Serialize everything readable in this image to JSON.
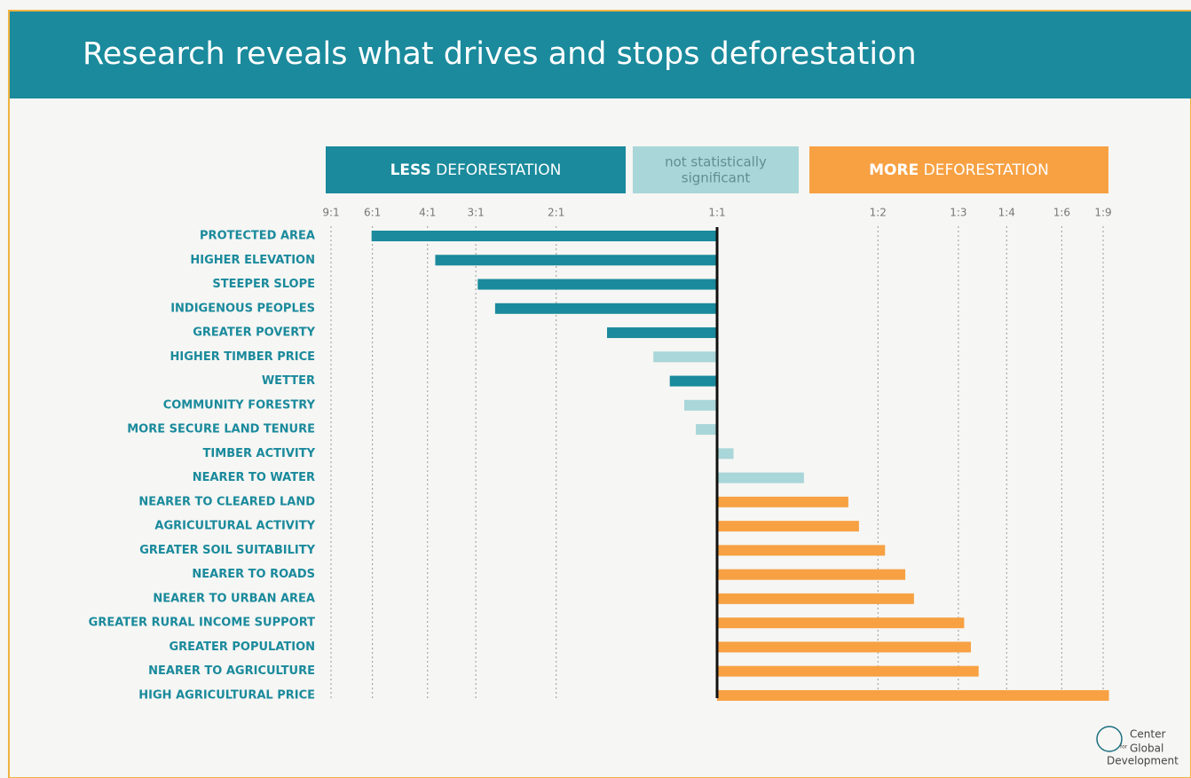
{
  "chart_data": {
    "type": "bar",
    "orientation": "horizontal",
    "title": "Research reveals what drives and stops deforestation",
    "legend": [
      {
        "bold": "LESS",
        "text": "DEFORESTATION",
        "color": "#1a8a9c",
        "text_color": "#ffffff"
      },
      {
        "lines": [
          "not statistically",
          "significant"
        ],
        "color": "#a9d6d8",
        "text_color": "#5f8f93"
      },
      {
        "bold": "MORE",
        "text": "DEFORESTATION",
        "color": "#f7a143",
        "text_color": "#ffffff"
      }
    ],
    "categories": [
      "PROTECTED AREA",
      "HIGHER ELEVATION",
      "STEEPER SLOPE",
      "INDIGENOUS PEOPLES",
      "GREATER POVERTY",
      "HIGHER TIMBER PRICE",
      "WETTER",
      "COMMUNITY FORESTRY",
      "MORE SECURE LAND TENURE",
      "TIMBER ACTIVITY",
      "NEARER TO WATER",
      "NEARER TO CLEARED LAND",
      "AGRICULTURAL ACTIVITY",
      "GREATER SOIL SUITABILITY",
      "NEARER TO ROADS",
      "NEARER TO URBAN AREA",
      "GREATER RURAL INCOME SUPPORT",
      "GREATER POPULATION",
      "NEARER TO AGRICULTURE",
      "HIGH AGRICULTURAL PRICE"
    ],
    "values": [
      0.142,
      0.208,
      0.252,
      0.27,
      0.386,
      0.434,
      0.451,
      0.466,
      0.478,
      0.517,
      0.59,
      0.636,
      0.647,
      0.674,
      0.695,
      0.704,
      0.756,
      0.763,
      0.771,
      0.906
    ],
    "colors": [
      "#1a8a9c",
      "#1a8a9c",
      "#1a8a9c",
      "#1a8a9c",
      "#1a8a9c",
      "#a9d6d8",
      "#1a8a9c",
      "#a9d6d8",
      "#a9d6d8",
      "#a9d6d8",
      "#a9d6d8",
      "#f7a143",
      "#f7a143",
      "#f7a143",
      "#f7a143",
      "#f7a143",
      "#f7a143",
      "#f7a143",
      "#f7a143",
      "#f7a143"
    ],
    "xlim": [
      0.1,
      0.9
    ],
    "xticks": [
      {
        "value": 0.1,
        "label": "9:1"
      },
      {
        "value": 0.1429,
        "label": "6:1"
      },
      {
        "value": 0.2,
        "label": "4:1"
      },
      {
        "value": 0.25,
        "label": "3:1"
      },
      {
        "value": 0.3333,
        "label": "2:1"
      },
      {
        "value": 0.5,
        "label": "1:1"
      },
      {
        "value": 0.6667,
        "label": "1:2"
      },
      {
        "value": 0.75,
        "label": "1:3"
      },
      {
        "value": 0.8,
        "label": "1:4"
      },
      {
        "value": 0.8571,
        "label": "1:6"
      },
      {
        "value": 0.9,
        "label": "1:9"
      }
    ],
    "grid": true
  },
  "logo": {
    "lines": [
      "Center",
      "for",
      "Global",
      "Development"
    ]
  }
}
